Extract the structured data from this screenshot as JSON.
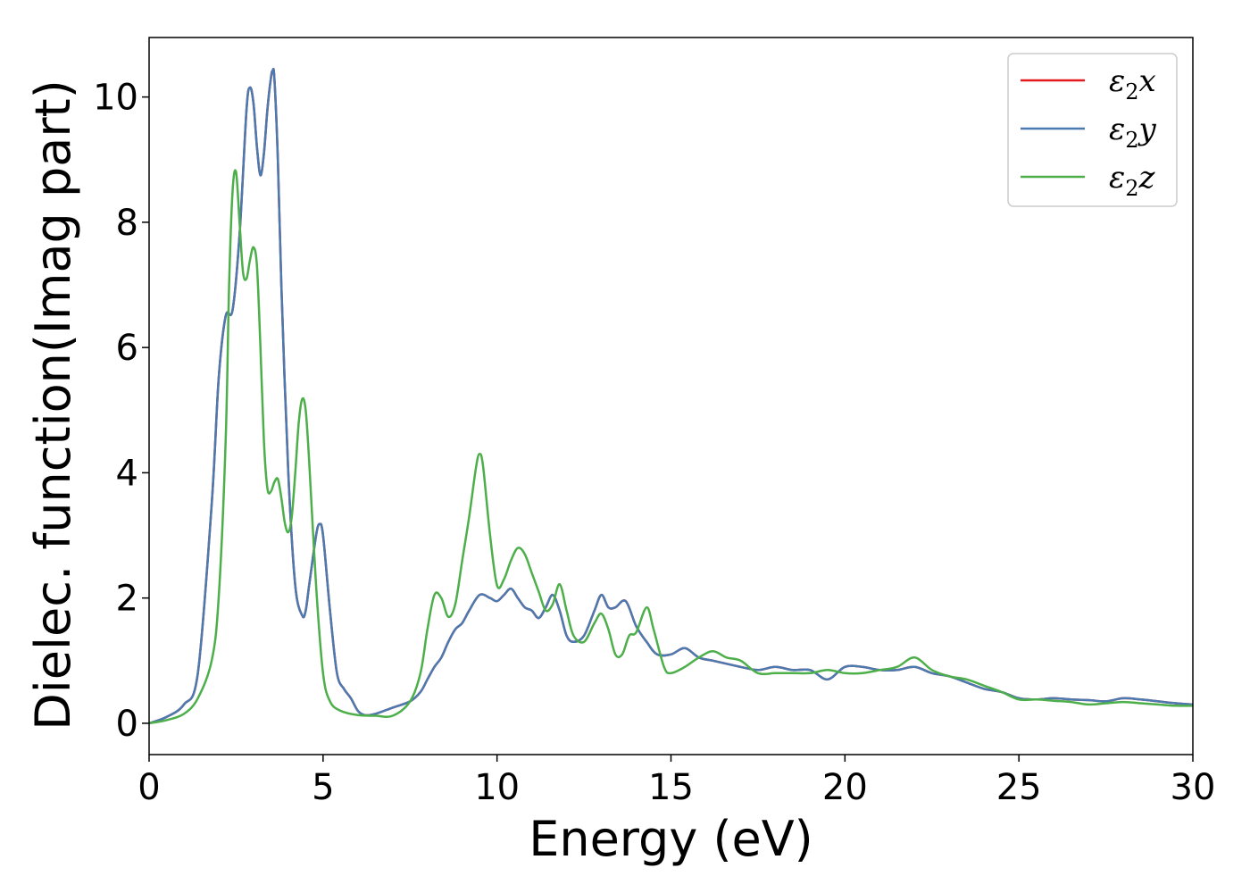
{
  "chart_data": {
    "type": "line",
    "title": "",
    "xlabel": "Energy (eV)",
    "ylabel": "Dielec. function(Imag part)",
    "xlim": [
      0,
      30
    ],
    "ylim": [
      -0.5,
      10.95
    ],
    "xticks": [
      0,
      5,
      10,
      15,
      20,
      25,
      30
    ],
    "xtick_labels": [
      "0",
      "5",
      "10",
      "15",
      "20",
      "25",
      "30"
    ],
    "yticks": [
      0,
      2,
      4,
      6,
      8,
      10
    ],
    "ytick_labels": [
      "0",
      "2",
      "4",
      "6",
      "8",
      "10"
    ],
    "grid": false,
    "legend_position": "top-right",
    "series": [
      {
        "name": "ε₂x",
        "legend_main": "ε",
        "legend_sub": "2",
        "legend_var": "x",
        "color": "#e41a1c",
        "x": [
          0,
          0.5,
          1,
          1.4,
          1.8,
          2.0,
          2.2,
          2.4,
          2.6,
          2.8,
          2.9,
          3.0,
          3.1,
          3.2,
          3.3,
          3.4,
          3.5,
          3.55,
          3.6,
          3.7,
          3.8,
          4.0,
          4.2,
          4.4,
          4.5,
          4.6,
          4.8,
          4.9,
          5.0,
          5.2,
          5.4,
          5.6,
          5.8,
          6.0,
          6.2,
          6.5,
          7.0,
          7.5,
          7.8,
          8.0,
          8.2,
          8.4,
          8.6,
          8.8,
          9.0,
          9.2,
          9.5,
          9.8,
          10.0,
          10.2,
          10.4,
          10.6,
          10.8,
          11.0,
          11.2,
          11.4,
          11.6,
          11.8,
          12.0,
          12.2,
          12.5,
          12.8,
          13.0,
          13.2,
          13.4,
          13.7,
          14.0,
          14.3,
          14.6,
          15.0,
          15.4,
          15.8,
          16.2,
          16.6,
          17.0,
          17.5,
          18.0,
          18.5,
          19.0,
          19.5,
          20.0,
          20.5,
          21.0,
          21.5,
          22.0,
          22.5,
          23.0,
          23.5,
          24.0,
          24.5,
          25.0,
          25.5,
          26.0,
          26.5,
          27.0,
          27.5,
          28.0,
          28.5,
          29.0,
          29.5,
          30.0
        ],
        "values": [
          0,
          0.1,
          0.3,
          0.8,
          3.5,
          5.5,
          6.5,
          6.6,
          7.8,
          9.8,
          10.15,
          9.9,
          9.2,
          8.75,
          9.1,
          9.8,
          10.3,
          10.42,
          10.3,
          9.0,
          7.0,
          4.0,
          2.2,
          1.72,
          1.8,
          2.2,
          3.0,
          3.18,
          3.0,
          1.8,
          0.8,
          0.55,
          0.4,
          0.2,
          0.13,
          0.15,
          0.25,
          0.35,
          0.5,
          0.7,
          0.9,
          1.05,
          1.3,
          1.5,
          1.6,
          1.8,
          2.05,
          2.0,
          1.95,
          2.05,
          2.15,
          2.0,
          1.85,
          1.8,
          1.68,
          1.85,
          2.05,
          1.8,
          1.4,
          1.3,
          1.4,
          1.8,
          2.05,
          1.85,
          1.85,
          1.95,
          1.55,
          1.3,
          1.1,
          1.1,
          1.2,
          1.05,
          1.0,
          0.95,
          0.9,
          0.85,
          0.9,
          0.85,
          0.85,
          0.7,
          0.9,
          0.9,
          0.85,
          0.85,
          0.9,
          0.8,
          0.75,
          0.65,
          0.55,
          0.5,
          0.4,
          0.38,
          0.4,
          0.38,
          0.37,
          0.35,
          0.4,
          0.38,
          0.35,
          0.32,
          0.3
        ]
      },
      {
        "name": "ε₂y",
        "legend_main": "ε",
        "legend_sub": "2",
        "legend_var": "y",
        "color": "#4a7ab0",
        "x": [
          0,
          0.5,
          1,
          1.4,
          1.8,
          2.0,
          2.2,
          2.4,
          2.6,
          2.8,
          2.9,
          3.0,
          3.1,
          3.2,
          3.3,
          3.4,
          3.5,
          3.55,
          3.6,
          3.7,
          3.8,
          4.0,
          4.2,
          4.4,
          4.5,
          4.6,
          4.8,
          4.9,
          5.0,
          5.2,
          5.4,
          5.6,
          5.8,
          6.0,
          6.2,
          6.5,
          7.0,
          7.5,
          7.8,
          8.0,
          8.2,
          8.4,
          8.6,
          8.8,
          9.0,
          9.2,
          9.5,
          9.8,
          10.0,
          10.2,
          10.4,
          10.6,
          10.8,
          11.0,
          11.2,
          11.4,
          11.6,
          11.8,
          12.0,
          12.2,
          12.5,
          12.8,
          13.0,
          13.2,
          13.4,
          13.7,
          14.0,
          14.3,
          14.6,
          15.0,
          15.4,
          15.8,
          16.2,
          16.6,
          17.0,
          17.5,
          18.0,
          18.5,
          19.0,
          19.5,
          20.0,
          20.5,
          21.0,
          21.5,
          22.0,
          22.5,
          23.0,
          23.5,
          24.0,
          24.5,
          25.0,
          25.5,
          26.0,
          26.5,
          27.0,
          27.5,
          28.0,
          28.5,
          29.0,
          29.5,
          30.0
        ],
        "values": [
          0,
          0.1,
          0.3,
          0.8,
          3.5,
          5.5,
          6.5,
          6.6,
          7.8,
          9.8,
          10.15,
          9.9,
          9.2,
          8.75,
          9.1,
          9.8,
          10.3,
          10.42,
          10.3,
          9.0,
          7.0,
          4.0,
          2.2,
          1.72,
          1.8,
          2.2,
          3.0,
          3.18,
          3.0,
          1.8,
          0.8,
          0.55,
          0.4,
          0.2,
          0.13,
          0.15,
          0.25,
          0.35,
          0.5,
          0.7,
          0.9,
          1.05,
          1.3,
          1.5,
          1.6,
          1.8,
          2.05,
          2.0,
          1.95,
          2.05,
          2.15,
          2.0,
          1.85,
          1.8,
          1.68,
          1.85,
          2.05,
          1.8,
          1.4,
          1.3,
          1.4,
          1.8,
          2.05,
          1.85,
          1.85,
          1.95,
          1.55,
          1.3,
          1.1,
          1.1,
          1.2,
          1.05,
          1.0,
          0.95,
          0.9,
          0.85,
          0.9,
          0.85,
          0.85,
          0.7,
          0.9,
          0.9,
          0.85,
          0.85,
          0.9,
          0.8,
          0.75,
          0.65,
          0.55,
          0.5,
          0.4,
          0.38,
          0.4,
          0.38,
          0.37,
          0.35,
          0.4,
          0.38,
          0.35,
          0.32,
          0.3
        ]
      },
      {
        "name": "ε₂z",
        "legend_main": "ε",
        "legend_sub": "2",
        "legend_var": "z",
        "color": "#4daf4a",
        "x": [
          0,
          0.5,
          1,
          1.4,
          1.8,
          2.0,
          2.2,
          2.3,
          2.4,
          2.5,
          2.6,
          2.7,
          2.8,
          2.9,
          3.0,
          3.1,
          3.2,
          3.3,
          3.4,
          3.5,
          3.6,
          3.7,
          3.8,
          3.9,
          4.0,
          4.1,
          4.2,
          4.3,
          4.4,
          4.5,
          4.6,
          4.8,
          5.0,
          5.2,
          5.5,
          6.0,
          6.5,
          7.0,
          7.5,
          7.8,
          8.0,
          8.2,
          8.4,
          8.6,
          8.8,
          9.0,
          9.2,
          9.4,
          9.5,
          9.6,
          9.8,
          10.0,
          10.2,
          10.4,
          10.6,
          10.8,
          11.0,
          11.2,
          11.4,
          11.6,
          11.8,
          12.0,
          12.2,
          12.5,
          12.8,
          13.0,
          13.2,
          13.4,
          13.6,
          13.8,
          14.0,
          14.3,
          14.5,
          14.8,
          15.0,
          15.4,
          15.8,
          16.2,
          16.6,
          17.0,
          17.5,
          18.0,
          18.5,
          19.0,
          19.5,
          20.0,
          20.5,
          21.0,
          21.5,
          22.0,
          22.5,
          23.0,
          23.5,
          24.0,
          24.5,
          25.0,
          25.5,
          26.0,
          26.5,
          27.0,
          27.5,
          28.0,
          28.5,
          29.0,
          29.5,
          30.0
        ],
        "values": [
          0,
          0.05,
          0.15,
          0.4,
          1.0,
          2.0,
          4.5,
          7.0,
          8.5,
          8.8,
          8.0,
          7.2,
          7.1,
          7.4,
          7.6,
          7.3,
          6.0,
          4.5,
          3.75,
          3.7,
          3.85,
          3.9,
          3.6,
          3.2,
          3.05,
          3.3,
          4.0,
          4.8,
          5.18,
          5.0,
          4.2,
          2.2,
          0.8,
          0.35,
          0.2,
          0.13,
          0.12,
          0.12,
          0.35,
          0.8,
          1.5,
          2.05,
          2.0,
          1.7,
          1.9,
          2.6,
          3.3,
          4.1,
          4.3,
          4.1,
          3.0,
          2.2,
          2.3,
          2.6,
          2.8,
          2.7,
          2.4,
          2.1,
          1.8,
          1.9,
          2.22,
          1.8,
          1.4,
          1.3,
          1.6,
          1.75,
          1.5,
          1.1,
          1.1,
          1.4,
          1.45,
          1.85,
          1.5,
          0.9,
          0.8,
          0.9,
          1.05,
          1.15,
          1.05,
          1.0,
          0.8,
          0.8,
          0.8,
          0.8,
          0.85,
          0.8,
          0.8,
          0.85,
          0.9,
          1.05,
          0.85,
          0.75,
          0.7,
          0.6,
          0.5,
          0.38,
          0.38,
          0.36,
          0.34,
          0.3,
          0.32,
          0.34,
          0.32,
          0.3,
          0.28,
          0.28
        ]
      }
    ]
  }
}
